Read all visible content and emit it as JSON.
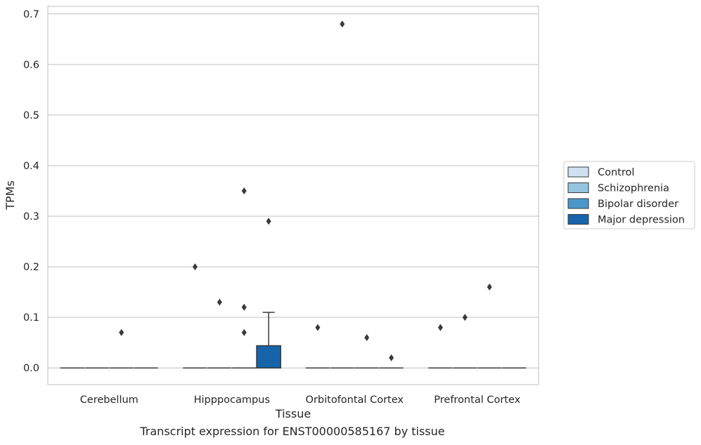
{
  "caption": "Transcript expression for ENST00000585167 by tissue",
  "chart_data": {
    "type": "box",
    "xlabel": "Tissue",
    "ylabel": "TPMs",
    "ylim": [
      -0.033,
      0.715
    ],
    "yticks": [
      0.0,
      0.1,
      0.2,
      0.3,
      0.4,
      0.5,
      0.6,
      0.7
    ],
    "ytick_labels": [
      "0.0",
      "0.1",
      "0.2",
      "0.3",
      "0.4",
      "0.5",
      "0.6",
      "0.7"
    ],
    "grid": "horizontal",
    "legend_position": "right",
    "categories": [
      "Cerebellum",
      "Hipppocampus",
      "Orbitofontal Cortex",
      "Prefrontal Cortex"
    ],
    "series": [
      {
        "name": "Control",
        "color": "#d0e1f2",
        "boxes": [
          {
            "category": "Cerebellum",
            "q1": 0,
            "median": 0,
            "q3": 0,
            "whisker_low": 0,
            "whisker_high": 0,
            "outliers": []
          },
          {
            "category": "Hipppocampus",
            "q1": 0,
            "median": 0,
            "q3": 0,
            "whisker_low": 0,
            "whisker_high": 0,
            "outliers": [
              0.2
            ]
          },
          {
            "category": "Orbitofontal Cortex",
            "q1": 0,
            "median": 0,
            "q3": 0,
            "whisker_low": 0,
            "whisker_high": 0,
            "outliers": [
              0.08
            ]
          },
          {
            "category": "Prefrontal Cortex",
            "q1": 0,
            "median": 0,
            "q3": 0,
            "whisker_low": 0,
            "whisker_high": 0,
            "outliers": [
              0.08
            ]
          }
        ]
      },
      {
        "name": "Schizophrenia",
        "color": "#94c4df",
        "boxes": [
          {
            "category": "Cerebellum",
            "q1": 0,
            "median": 0,
            "q3": 0,
            "whisker_low": 0,
            "whisker_high": 0,
            "outliers": []
          },
          {
            "category": "Hipppocampus",
            "q1": 0,
            "median": 0,
            "q3": 0,
            "whisker_low": 0,
            "whisker_high": 0,
            "outliers": [
              0.13
            ]
          },
          {
            "category": "Orbitofontal Cortex",
            "q1": 0,
            "median": 0,
            "q3": 0,
            "whisker_low": 0,
            "whisker_high": 0,
            "outliers": [
              0.68
            ]
          },
          {
            "category": "Prefrontal Cortex",
            "q1": 0,
            "median": 0,
            "q3": 0,
            "whisker_low": 0,
            "whisker_high": 0,
            "outliers": [
              0.1
            ]
          }
        ]
      },
      {
        "name": "Bipolar disorder",
        "color": "#4a98c9",
        "boxes": [
          {
            "category": "Cerebellum",
            "q1": 0,
            "median": 0,
            "q3": 0,
            "whisker_low": 0,
            "whisker_high": 0,
            "outliers": [
              0.07
            ]
          },
          {
            "category": "Hipppocampus",
            "q1": 0,
            "median": 0,
            "q3": 0,
            "whisker_low": 0,
            "whisker_high": 0,
            "outliers": [
              0.35,
              0.12,
              0.07
            ]
          },
          {
            "category": "Orbitofontal Cortex",
            "q1": 0,
            "median": 0,
            "q3": 0,
            "whisker_low": 0,
            "whisker_high": 0,
            "outliers": [
              0.06
            ]
          },
          {
            "category": "Prefrontal Cortex",
            "q1": 0,
            "median": 0,
            "q3": 0,
            "whisker_low": 0,
            "whisker_high": 0,
            "outliers": [
              0.16
            ]
          }
        ]
      },
      {
        "name": "Major depression",
        "color": "#1764ab",
        "boxes": [
          {
            "category": "Cerebellum",
            "q1": 0,
            "median": 0,
            "q3": 0,
            "whisker_low": 0,
            "whisker_high": 0,
            "outliers": []
          },
          {
            "category": "Hipppocampus",
            "q1": 0,
            "median": 0,
            "q3": 0.044,
            "whisker_low": 0,
            "whisker_high": 0.11,
            "outliers": [
              0.29
            ]
          },
          {
            "category": "Orbitofontal Cortex",
            "q1": 0,
            "median": 0,
            "q3": 0,
            "whisker_low": 0,
            "whisker_high": 0,
            "outliers": [
              0.02
            ]
          },
          {
            "category": "Prefrontal Cortex",
            "q1": 0,
            "median": 0,
            "q3": 0,
            "whisker_low": 0,
            "whisker_high": 0,
            "outliers": []
          }
        ]
      }
    ]
  }
}
